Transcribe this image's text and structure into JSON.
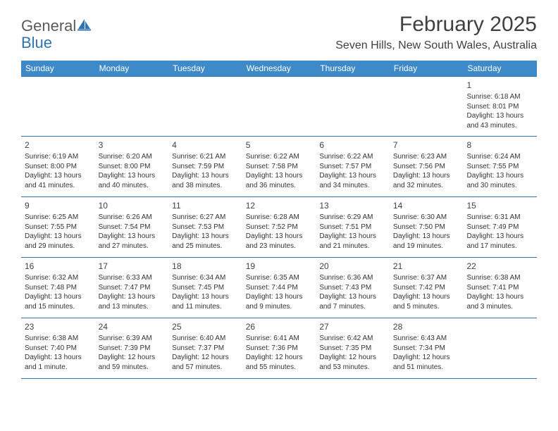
{
  "logo": {
    "text1": "General",
    "text2": "Blue"
  },
  "title": "February 2025",
  "location": "Seven Hills, New South Wales, Australia",
  "weekday_header_bg": "#3e8ac8",
  "border_color": "#2e74b5",
  "weekdays": [
    "Sunday",
    "Monday",
    "Tuesday",
    "Wednesday",
    "Thursday",
    "Friday",
    "Saturday"
  ],
  "weeks": [
    [
      null,
      null,
      null,
      null,
      null,
      null,
      {
        "d": "1",
        "sr": "Sunrise: 6:18 AM",
        "ss": "Sunset: 8:01 PM",
        "dl": "Daylight: 13 hours and 43 minutes."
      }
    ],
    [
      {
        "d": "2",
        "sr": "Sunrise: 6:19 AM",
        "ss": "Sunset: 8:00 PM",
        "dl": "Daylight: 13 hours and 41 minutes."
      },
      {
        "d": "3",
        "sr": "Sunrise: 6:20 AM",
        "ss": "Sunset: 8:00 PM",
        "dl": "Daylight: 13 hours and 40 minutes."
      },
      {
        "d": "4",
        "sr": "Sunrise: 6:21 AM",
        "ss": "Sunset: 7:59 PM",
        "dl": "Daylight: 13 hours and 38 minutes."
      },
      {
        "d": "5",
        "sr": "Sunrise: 6:22 AM",
        "ss": "Sunset: 7:58 PM",
        "dl": "Daylight: 13 hours and 36 minutes."
      },
      {
        "d": "6",
        "sr": "Sunrise: 6:22 AM",
        "ss": "Sunset: 7:57 PM",
        "dl": "Daylight: 13 hours and 34 minutes."
      },
      {
        "d": "7",
        "sr": "Sunrise: 6:23 AM",
        "ss": "Sunset: 7:56 PM",
        "dl": "Daylight: 13 hours and 32 minutes."
      },
      {
        "d": "8",
        "sr": "Sunrise: 6:24 AM",
        "ss": "Sunset: 7:55 PM",
        "dl": "Daylight: 13 hours and 30 minutes."
      }
    ],
    [
      {
        "d": "9",
        "sr": "Sunrise: 6:25 AM",
        "ss": "Sunset: 7:55 PM",
        "dl": "Daylight: 13 hours and 29 minutes."
      },
      {
        "d": "10",
        "sr": "Sunrise: 6:26 AM",
        "ss": "Sunset: 7:54 PM",
        "dl": "Daylight: 13 hours and 27 minutes."
      },
      {
        "d": "11",
        "sr": "Sunrise: 6:27 AM",
        "ss": "Sunset: 7:53 PM",
        "dl": "Daylight: 13 hours and 25 minutes."
      },
      {
        "d": "12",
        "sr": "Sunrise: 6:28 AM",
        "ss": "Sunset: 7:52 PM",
        "dl": "Daylight: 13 hours and 23 minutes."
      },
      {
        "d": "13",
        "sr": "Sunrise: 6:29 AM",
        "ss": "Sunset: 7:51 PM",
        "dl": "Daylight: 13 hours and 21 minutes."
      },
      {
        "d": "14",
        "sr": "Sunrise: 6:30 AM",
        "ss": "Sunset: 7:50 PM",
        "dl": "Daylight: 13 hours and 19 minutes."
      },
      {
        "d": "15",
        "sr": "Sunrise: 6:31 AM",
        "ss": "Sunset: 7:49 PM",
        "dl": "Daylight: 13 hours and 17 minutes."
      }
    ],
    [
      {
        "d": "16",
        "sr": "Sunrise: 6:32 AM",
        "ss": "Sunset: 7:48 PM",
        "dl": "Daylight: 13 hours and 15 minutes."
      },
      {
        "d": "17",
        "sr": "Sunrise: 6:33 AM",
        "ss": "Sunset: 7:47 PM",
        "dl": "Daylight: 13 hours and 13 minutes."
      },
      {
        "d": "18",
        "sr": "Sunrise: 6:34 AM",
        "ss": "Sunset: 7:45 PM",
        "dl": "Daylight: 13 hours and 11 minutes."
      },
      {
        "d": "19",
        "sr": "Sunrise: 6:35 AM",
        "ss": "Sunset: 7:44 PM",
        "dl": "Daylight: 13 hours and 9 minutes."
      },
      {
        "d": "20",
        "sr": "Sunrise: 6:36 AM",
        "ss": "Sunset: 7:43 PM",
        "dl": "Daylight: 13 hours and 7 minutes."
      },
      {
        "d": "21",
        "sr": "Sunrise: 6:37 AM",
        "ss": "Sunset: 7:42 PM",
        "dl": "Daylight: 13 hours and 5 minutes."
      },
      {
        "d": "22",
        "sr": "Sunrise: 6:38 AM",
        "ss": "Sunset: 7:41 PM",
        "dl": "Daylight: 13 hours and 3 minutes."
      }
    ],
    [
      {
        "d": "23",
        "sr": "Sunrise: 6:38 AM",
        "ss": "Sunset: 7:40 PM",
        "dl": "Daylight: 13 hours and 1 minute."
      },
      {
        "d": "24",
        "sr": "Sunrise: 6:39 AM",
        "ss": "Sunset: 7:39 PM",
        "dl": "Daylight: 12 hours and 59 minutes."
      },
      {
        "d": "25",
        "sr": "Sunrise: 6:40 AM",
        "ss": "Sunset: 7:37 PM",
        "dl": "Daylight: 12 hours and 57 minutes."
      },
      {
        "d": "26",
        "sr": "Sunrise: 6:41 AM",
        "ss": "Sunset: 7:36 PM",
        "dl": "Daylight: 12 hours and 55 minutes."
      },
      {
        "d": "27",
        "sr": "Sunrise: 6:42 AM",
        "ss": "Sunset: 7:35 PM",
        "dl": "Daylight: 12 hours and 53 minutes."
      },
      {
        "d": "28",
        "sr": "Sunrise: 6:43 AM",
        "ss": "Sunset: 7:34 PM",
        "dl": "Daylight: 12 hours and 51 minutes."
      },
      null
    ]
  ]
}
